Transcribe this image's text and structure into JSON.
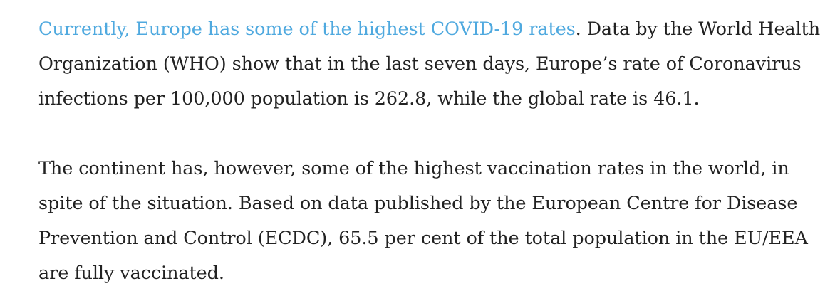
{
  "article": {
    "paragraphs": [
      {
        "link_text": "Currently, Europe has some of the highest COVID-19 rates",
        "text": ". Data by the World Health Organization (WHO) show that in the last seven days, Europe’s rate of Coronavirus infections per 100,000 population is 262.8, while the global rate is 46.1."
      },
      {
        "text": "The continent has, however, some of the highest vaccination rates in the world, in spite of the situation. Based on data published by the European Centre for Disease Prevention and Control (ECDC), 65.5 per cent of the total population in the EU/EEA are fully vaccinated."
      }
    ],
    "link_color": "#4fa9df",
    "text_color": "#222222"
  }
}
